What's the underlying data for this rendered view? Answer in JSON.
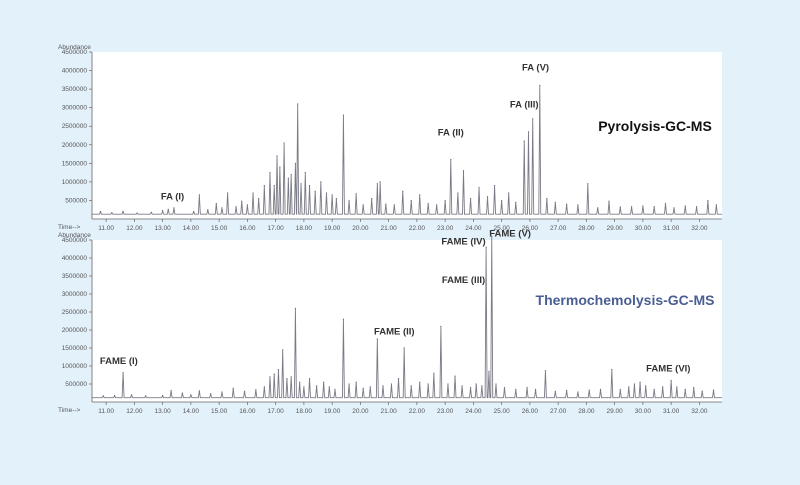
{
  "chart_data": [
    {
      "type": "line",
      "title": "Pyrolysis-GC-MS",
      "ylabel": "Abundance",
      "xlabel": "Time-->",
      "xlim": [
        10.5,
        32.8
      ],
      "ylim": [
        0,
        4500000
      ],
      "x_ticks": [
        "11.00",
        "12.00",
        "13.00",
        "14.00",
        "15.00",
        "16.00",
        "17.00",
        "18.00",
        "19.00",
        "20.00",
        "21.00",
        "22.00",
        "23.00",
        "24.00",
        "25.00",
        "26.00",
        "27.00",
        "28.00",
        "29.00",
        "30.00",
        "31.00",
        "32.00"
      ],
      "y_ticks": [
        "500000",
        "1000000",
        "1500000",
        "2000000",
        "2500000",
        "3000000",
        "3500000",
        "4000000",
        "4500000"
      ],
      "baseline": 130000,
      "peaks": [
        [
          10.8,
          200000
        ],
        [
          11.2,
          170000
        ],
        [
          11.6,
          210000
        ],
        [
          12.1,
          160000
        ],
        [
          12.6,
          180000
        ],
        [
          13.0,
          230000
        ],
        [
          13.2,
          260000
        ],
        [
          13.4,
          300000
        ],
        [
          14.1,
          200000
        ],
        [
          14.3,
          650000
        ],
        [
          14.6,
          250000
        ],
        [
          14.9,
          420000
        ],
        [
          15.1,
          300000
        ],
        [
          15.3,
          700000
        ],
        [
          15.6,
          330000
        ],
        [
          15.8,
          480000
        ],
        [
          16.0,
          380000
        ],
        [
          16.2,
          700000
        ],
        [
          16.4,
          550000
        ],
        [
          16.6,
          900000
        ],
        [
          16.8,
          1250000
        ],
        [
          16.95,
          900000
        ],
        [
          17.05,
          1700000
        ],
        [
          17.15,
          1400000
        ],
        [
          17.3,
          2050000
        ],
        [
          17.45,
          1100000
        ],
        [
          17.55,
          1200000
        ],
        [
          17.7,
          1500000
        ],
        [
          17.78,
          3100000
        ],
        [
          17.9,
          950000
        ],
        [
          18.05,
          1250000
        ],
        [
          18.2,
          900000
        ],
        [
          18.4,
          750000
        ],
        [
          18.6,
          1000000
        ],
        [
          18.8,
          700000
        ],
        [
          19.0,
          650000
        ],
        [
          19.15,
          550000
        ],
        [
          19.4,
          2800000
        ],
        [
          19.6,
          500000
        ],
        [
          19.85,
          680000
        ],
        [
          20.1,
          380000
        ],
        [
          20.4,
          550000
        ],
        [
          20.6,
          950000
        ],
        [
          20.7,
          1000000
        ],
        [
          20.9,
          400000
        ],
        [
          21.2,
          380000
        ],
        [
          21.5,
          750000
        ],
        [
          21.8,
          500000
        ],
        [
          22.1,
          650000
        ],
        [
          22.4,
          420000
        ],
        [
          22.7,
          380000
        ],
        [
          23.0,
          500000
        ],
        [
          23.2,
          1600000
        ],
        [
          23.45,
          700000
        ],
        [
          23.65,
          1300000
        ],
        [
          23.9,
          550000
        ],
        [
          24.2,
          850000
        ],
        [
          24.5,
          600000
        ],
        [
          24.75,
          900000
        ],
        [
          25.0,
          500000
        ],
        [
          25.25,
          700000
        ],
        [
          25.5,
          450000
        ],
        [
          25.8,
          2100000
        ],
        [
          25.95,
          2350000
        ],
        [
          26.1,
          2700000
        ],
        [
          26.35,
          3600000
        ],
        [
          26.6,
          550000
        ],
        [
          26.9,
          450000
        ],
        [
          27.3,
          400000
        ],
        [
          27.7,
          380000
        ],
        [
          28.05,
          950000
        ],
        [
          28.4,
          300000
        ],
        [
          28.8,
          480000
        ],
        [
          29.2,
          320000
        ],
        [
          29.6,
          330000
        ],
        [
          30.0,
          350000
        ],
        [
          30.4,
          330000
        ],
        [
          30.8,
          420000
        ],
        [
          31.1,
          300000
        ],
        [
          31.5,
          350000
        ],
        [
          31.9,
          330000
        ],
        [
          32.3,
          500000
        ],
        [
          32.6,
          380000
        ]
      ],
      "annotations": [
        {
          "text": "FA  (I)",
          "x": 13.35,
          "y": 520000
        },
        {
          "text": "FA  (II)",
          "x": 23.2,
          "y": 2250000
        },
        {
          "text": "FA  (III)",
          "x": 25.8,
          "y": 3000000
        },
        {
          "text": "FA  (V)",
          "x": 26.2,
          "y": 4000000
        }
      ]
    },
    {
      "type": "line",
      "title": "Thermochemolysis-GC-MS",
      "ylabel": "Abundance",
      "xlabel": "Time-->",
      "xlim": [
        10.5,
        32.8
      ],
      "ylim": [
        0,
        4500000
      ],
      "x_ticks": [
        "11.00",
        "12.00",
        "13.00",
        "14.00",
        "15.00",
        "16.00",
        "17.00",
        "18.00",
        "19.00",
        "20.00",
        "21.00",
        "22.00",
        "23.00",
        "24.00",
        "25.00",
        "26.00",
        "27.00",
        "28.00",
        "29.00",
        "30.00",
        "31.00",
        "32.00"
      ],
      "y_ticks": [
        "500000",
        "1000000",
        "1500000",
        "2000000",
        "2500000",
        "3000000",
        "3500000",
        "4000000",
        "4500000"
      ],
      "baseline": 120000,
      "peaks": [
        [
          10.9,
          170000
        ],
        [
          11.3,
          180000
        ],
        [
          11.6,
          820000
        ],
        [
          11.9,
          200000
        ],
        [
          12.4,
          170000
        ],
        [
          13.0,
          180000
        ],
        [
          13.3,
          320000
        ],
        [
          13.7,
          250000
        ],
        [
          14.0,
          200000
        ],
        [
          14.3,
          310000
        ],
        [
          14.7,
          230000
        ],
        [
          15.1,
          280000
        ],
        [
          15.5,
          380000
        ],
        [
          15.9,
          300000
        ],
        [
          16.3,
          340000
        ],
        [
          16.6,
          420000
        ],
        [
          16.8,
          700000
        ],
        [
          16.95,
          780000
        ],
        [
          17.1,
          900000
        ],
        [
          17.25,
          1450000
        ],
        [
          17.4,
          650000
        ],
        [
          17.55,
          700000
        ],
        [
          17.7,
          2600000
        ],
        [
          17.85,
          550000
        ],
        [
          18.0,
          420000
        ],
        [
          18.2,
          650000
        ],
        [
          18.45,
          450000
        ],
        [
          18.7,
          550000
        ],
        [
          18.9,
          420000
        ],
        [
          19.1,
          350000
        ],
        [
          19.4,
          2300000
        ],
        [
          19.6,
          500000
        ],
        [
          19.85,
          550000
        ],
        [
          20.1,
          380000
        ],
        [
          20.35,
          420000
        ],
        [
          20.6,
          1750000
        ],
        [
          20.8,
          450000
        ],
        [
          21.1,
          500000
        ],
        [
          21.35,
          650000
        ],
        [
          21.55,
          1500000
        ],
        [
          21.8,
          450000
        ],
        [
          22.1,
          550000
        ],
        [
          22.4,
          500000
        ],
        [
          22.6,
          800000
        ],
        [
          22.85,
          2100000
        ],
        [
          23.1,
          500000
        ],
        [
          23.35,
          720000
        ],
        [
          23.6,
          450000
        ],
        [
          23.9,
          400000
        ],
        [
          24.1,
          500000
        ],
        [
          24.3,
          450000
        ],
        [
          24.45,
          4300000
        ],
        [
          24.55,
          850000
        ],
        [
          24.65,
          4600000
        ],
        [
          24.8,
          500000
        ],
        [
          25.1,
          400000
        ],
        [
          25.5,
          350000
        ],
        [
          25.9,
          400000
        ],
        [
          26.2,
          350000
        ],
        [
          26.55,
          870000
        ],
        [
          26.9,
          300000
        ],
        [
          27.3,
          320000
        ],
        [
          27.7,
          280000
        ],
        [
          28.1,
          330000
        ],
        [
          28.5,
          350000
        ],
        [
          28.9,
          900000
        ],
        [
          29.2,
          350000
        ],
        [
          29.5,
          420000
        ],
        [
          29.7,
          500000
        ],
        [
          29.9,
          550000
        ],
        [
          30.1,
          450000
        ],
        [
          30.4,
          350000
        ],
        [
          30.7,
          420000
        ],
        [
          31.0,
          600000
        ],
        [
          31.2,
          420000
        ],
        [
          31.5,
          350000
        ],
        [
          31.8,
          400000
        ],
        [
          32.1,
          300000
        ],
        [
          32.5,
          330000
        ]
      ],
      "annotations": [
        {
          "text": "FAME  (I)",
          "x": 11.45,
          "y": 1050000
        },
        {
          "text": "FAME  (II)",
          "x": 21.2,
          "y": 1870000
        },
        {
          "text": "FAME  (III)",
          "x": 23.65,
          "y": 3300000
        },
        {
          "text": "FAME  (IV)",
          "x": 23.65,
          "y": 4380000
        },
        {
          "text": "FAME  (V)",
          "x": 25.3,
          "y": 4600000
        },
        {
          "text": "FAME  (VI)",
          "x": 30.9,
          "y": 850000
        }
      ]
    }
  ]
}
